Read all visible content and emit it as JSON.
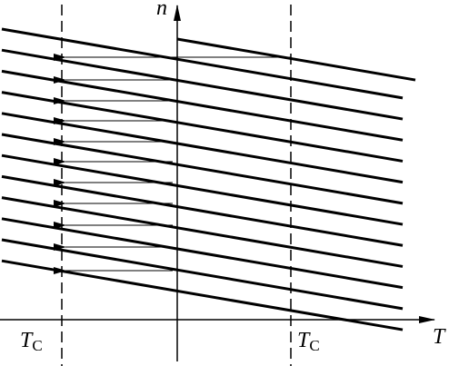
{
  "axes": {
    "vertical": "n",
    "horizontal": "T"
  },
  "markers": [
    {
      "symbol": "T",
      "subscript": "C"
    },
    {
      "symbol": "T",
      "subscript": "C"
    }
  ]
}
